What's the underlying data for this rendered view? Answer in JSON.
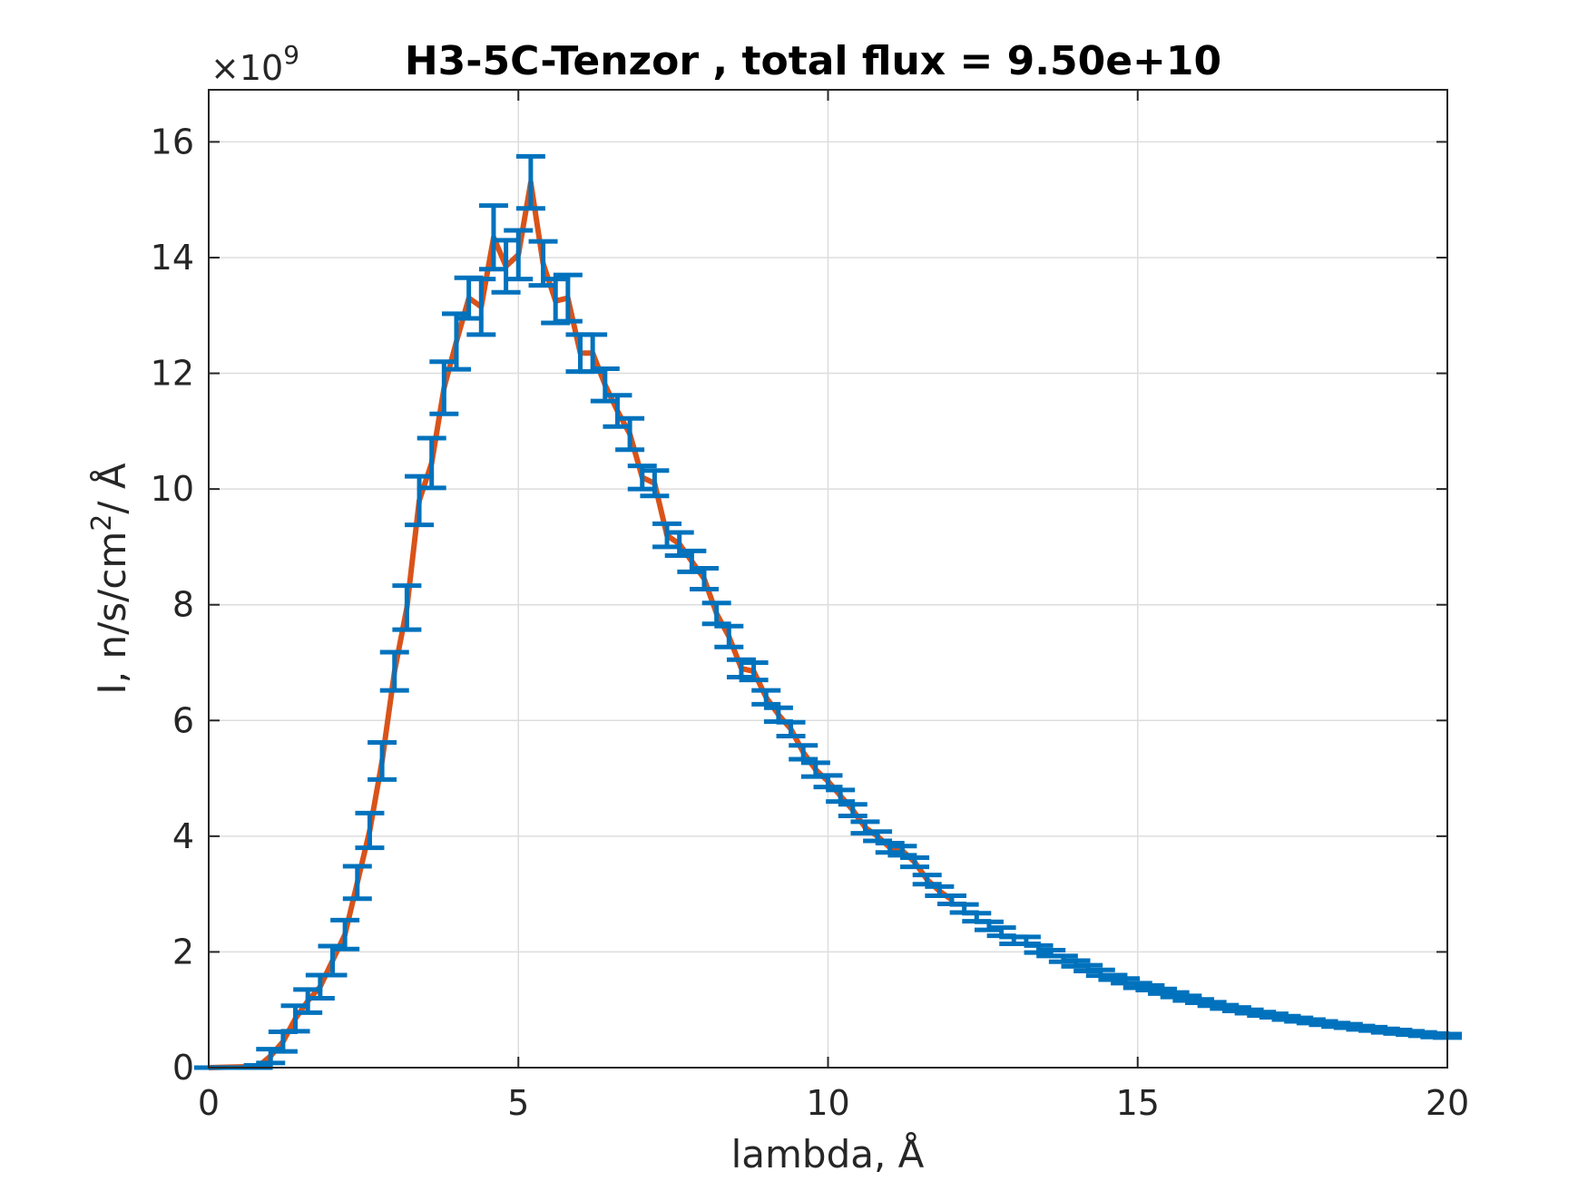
{
  "chart_data": {
    "type": "line",
    "title": "H3-5C-Tenzor , total flux =  9.50e+10",
    "xlabel": "lambda,  Å",
    "ylabel_main": "I, n/s/cm",
    "ylabel_sup": "2",
    "ylabel_tail": "/ Å",
    "y_exponent_prefix": "×10",
    "y_exponent_power": "9",
    "xlim": [
      0,
      20
    ],
    "ylim": [
      0,
      16.9
    ],
    "x_ticks": [
      0,
      5,
      10,
      15,
      20
    ],
    "y_ticks": [
      0,
      2,
      4,
      6,
      8,
      10,
      12,
      14,
      16
    ],
    "grid": true,
    "colors": {
      "line": "#D95319",
      "errorbar": "#0072BD",
      "grid": "#dddddd",
      "axis": "#262626"
    },
    "series": [
      {
        "type": "errorbar",
        "x": [
          0.0,
          0.2,
          0.4,
          0.6,
          0.8,
          1.0,
          1.2,
          1.4,
          1.6,
          1.8,
          2.0,
          2.2,
          2.4,
          2.6,
          2.8,
          3.0,
          3.2,
          3.4,
          3.6,
          3.8,
          4.0,
          4.2,
          4.4,
          4.6,
          4.8,
          5.0,
          5.2,
          5.4,
          5.6,
          5.8,
          6.0,
          6.2,
          6.4,
          6.6,
          6.8,
          7.0,
          7.2,
          7.4,
          7.6,
          7.8,
          8.0,
          8.2,
          8.4,
          8.6,
          8.8,
          9.0,
          9.2,
          9.4,
          9.6,
          9.8,
          10.0,
          10.2,
          10.4,
          10.6,
          10.8,
          11.0,
          11.2,
          11.4,
          11.6,
          11.8,
          12.0,
          12.2,
          12.4,
          12.6,
          12.8,
          13.0,
          13.2,
          13.4,
          13.6,
          13.8,
          14.0,
          14.2,
          14.4,
          14.6,
          14.8,
          15.0,
          15.2,
          15.4,
          15.6,
          15.8,
          16.0,
          16.2,
          16.4,
          16.6,
          16.8,
          17.0,
          17.2,
          17.4,
          17.6,
          17.8,
          18.0,
          18.2,
          18.4,
          18.6,
          18.8,
          19.0,
          19.2,
          19.4,
          19.6,
          19.8,
          20.0
        ],
        "y": [
          0.0,
          0.0,
          0.0,
          0.0,
          0.02,
          0.2,
          0.45,
          0.85,
          1.15,
          1.4,
          1.85,
          2.3,
          3.2,
          4.1,
          5.3,
          6.85,
          7.95,
          9.8,
          10.45,
          11.75,
          12.55,
          13.3,
          13.15,
          14.35,
          13.85,
          14.05,
          15.3,
          13.9,
          13.25,
          13.3,
          12.35,
          12.35,
          11.8,
          11.35,
          10.95,
          10.2,
          10.1,
          9.2,
          9.05,
          8.75,
          8.45,
          7.85,
          7.45,
          6.9,
          6.85,
          6.4,
          6.1,
          5.85,
          5.45,
          5.15,
          4.95,
          4.7,
          4.45,
          4.15,
          4.0,
          3.8,
          3.75,
          3.55,
          3.25,
          3.05,
          2.9,
          2.75,
          2.6,
          2.45,
          2.35,
          2.2,
          2.2,
          2.05,
          1.98,
          1.88,
          1.8,
          1.72,
          1.64,
          1.56,
          1.5,
          1.42,
          1.38,
          1.32,
          1.26,
          1.2,
          1.15,
          1.1,
          1.05,
          1.01,
          0.97,
          0.93,
          0.9,
          0.86,
          0.83,
          0.8,
          0.77,
          0.74,
          0.72,
          0.69,
          0.67,
          0.64,
          0.62,
          0.6,
          0.58,
          0.56,
          0.55
        ],
        "err": [
          0.0,
          0.0,
          0.0,
          0.0,
          0.02,
          0.12,
          0.17,
          0.22,
          0.2,
          0.2,
          0.25,
          0.25,
          0.28,
          0.3,
          0.32,
          0.33,
          0.38,
          0.42,
          0.43,
          0.45,
          0.48,
          0.35,
          0.48,
          0.55,
          0.45,
          0.42,
          0.45,
          0.38,
          0.38,
          0.4,
          0.32,
          0.32,
          0.28,
          0.27,
          0.27,
          0.2,
          0.22,
          0.2,
          0.2,
          0.18,
          0.18,
          0.18,
          0.18,
          0.15,
          0.15,
          0.12,
          0.12,
          0.12,
          0.12,
          0.12,
          0.1,
          0.1,
          0.1,
          0.1,
          0.08,
          0.08,
          0.08,
          0.08,
          0.08,
          0.08,
          0.07,
          0.07,
          0.07,
          0.07,
          0.07,
          0.06,
          0.06,
          0.06,
          0.05,
          0.05,
          0.05,
          0.05,
          0.05,
          0.04,
          0.04,
          0.04,
          0.04,
          0.04,
          0.04,
          0.04,
          0.03,
          0.03,
          0.03,
          0.03,
          0.03,
          0.03,
          0.03,
          0.03,
          0.03,
          0.03,
          0.03,
          0.03,
          0.03,
          0.03,
          0.03,
          0.03,
          0.03,
          0.03,
          0.03,
          0.03,
          0.03
        ]
      },
      {
        "type": "line",
        "x": [
          0.0,
          0.8,
          1.0,
          1.2,
          1.4,
          1.6,
          1.8,
          2.0,
          2.2,
          2.4,
          2.6,
          2.8,
          3.0,
          3.2,
          3.4,
          3.6,
          3.8,
          4.0,
          4.2,
          4.4,
          4.6,
          4.8,
          5.0,
          5.2,
          5.4,
          5.6,
          5.8,
          6.0,
          6.2,
          6.4,
          6.6,
          6.8,
          7.0,
          7.2,
          7.4,
          7.6,
          7.8,
          8.0,
          8.2,
          8.4,
          8.6,
          8.8,
          9.0,
          9.2,
          9.4,
          9.6,
          9.8,
          10.0,
          10.2,
          10.4,
          10.6,
          10.8,
          11.0,
          11.2,
          11.4,
          11.6,
          11.8,
          12.0
        ],
        "y": [
          0.0,
          0.02,
          0.2,
          0.45,
          0.85,
          1.15,
          1.4,
          1.85,
          2.3,
          3.2,
          4.1,
          5.3,
          6.85,
          7.95,
          9.8,
          10.45,
          11.75,
          12.55,
          13.3,
          13.15,
          14.35,
          13.85,
          14.05,
          15.3,
          13.9,
          13.25,
          13.3,
          12.35,
          12.35,
          11.8,
          11.35,
          10.95,
          10.2,
          10.1,
          9.2,
          9.05,
          8.75,
          8.45,
          7.85,
          7.45,
          6.9,
          6.85,
          6.4,
          6.1,
          5.85,
          5.45,
          5.15,
          4.95,
          4.7,
          4.45,
          4.15,
          4.0,
          3.8,
          3.75,
          3.55,
          3.25,
          3.05,
          2.9
        ]
      }
    ]
  }
}
